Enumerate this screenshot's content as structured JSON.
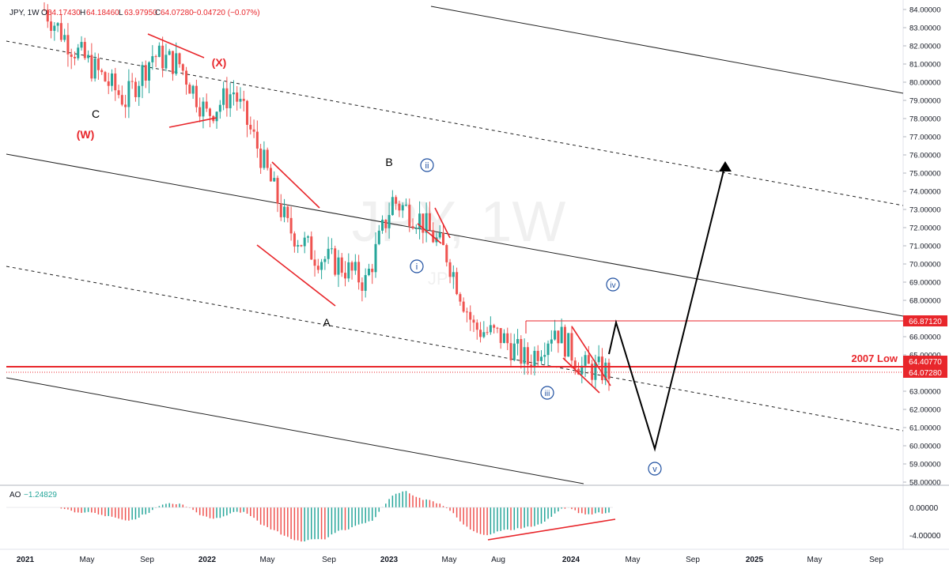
{
  "header": {
    "symbol_tf": "JPY, 1W",
    "o_label": "O",
    "o": "64.17430",
    "h_label": "H",
    "h": "64.18460",
    "l_label": "L",
    "l": "63.97950",
    "c_label": "C",
    "c": "64.07280",
    "change": "−0.04720 (−0.07%)"
  },
  "watermark": {
    "big": "JPY, 1W",
    "small": "JPY"
  },
  "ao_panel": {
    "label": "AO",
    "value": "−1.24829"
  },
  "colors": {
    "up": "#26a69a",
    "down": "#ef5350",
    "annotation_red": "#e8262b",
    "wave_blue": "#1e4fa0"
  },
  "annotations": {
    "C": "C",
    "W": "(W)",
    "X": "(X)",
    "B": "B",
    "A": "A",
    "i": "i",
    "ii": "ii",
    "iii": "iii",
    "iv": "iv",
    "v": "v",
    "low_2007": "2007 Low"
  },
  "chart_data": {
    "type": "candlestick",
    "timeframe": "1W",
    "price_axis": {
      "ticks": [
        "84.00000",
        "83.00000",
        "82.00000",
        "81.00000",
        "80.00000",
        "79.00000",
        "78.00000",
        "77.00000",
        "76.00000",
        "75.00000",
        "74.00000",
        "73.00000",
        "72.00000",
        "71.00000",
        "70.00000",
        "69.00000",
        "68.00000",
        "67.00000",
        "66.00000",
        "65.00000",
        "64.00000",
        "63.00000",
        "62.00000",
        "61.00000",
        "60.00000",
        "59.00000",
        "58.00000"
      ],
      "range": [
        58,
        84
      ]
    },
    "time_axis": {
      "ticks": [
        "2021",
        "May",
        "Sep",
        "2022",
        "May",
        "Sep",
        "2023",
        "May",
        "Aug",
        "2024",
        "May",
        "Sep",
        "2025",
        "May",
        "Sep"
      ]
    },
    "price_labels": [
      {
        "value": "66.87120",
        "style": "red-fill"
      },
      {
        "value": "64.40770",
        "style": "red-fill"
      },
      {
        "value": "64.07280",
        "style": "red-fill"
      }
    ],
    "horizontal_levels": [
      {
        "name": "2007 Low",
        "value": 64.4077
      }
    ],
    "ao_axis": {
      "ticks": [
        "0.00000",
        "-4.00000"
      ]
    },
    "close_series_approx": [
      {
        "t": "2021-01",
        "close": 84.0
      },
      {
        "t": "2021-02",
        "close": 82.0
      },
      {
        "t": "2021-03",
        "close": 80.5
      },
      {
        "t": "2021-05",
        "close": 79.0
      },
      {
        "t": "2021-07",
        "close": 81.5
      },
      {
        "t": "2021-09",
        "close": 81.0
      },
      {
        "t": "2021-11",
        "close": 78.2
      },
      {
        "t": "2022-01",
        "close": 79.5
      },
      {
        "t": "2022-03",
        "close": 76.0
      },
      {
        "t": "2022-05",
        "close": 72.0
      },
      {
        "t": "2022-07",
        "close": 70.5
      },
      {
        "t": "2022-09",
        "close": 70.0
      },
      {
        "t": "2022-11",
        "close": 69.0
      },
      {
        "t": "2023-01",
        "close": 73.5
      },
      {
        "t": "2023-03",
        "close": 72.5
      },
      {
        "t": "2023-05",
        "close": 70.5
      },
      {
        "t": "2023-07",
        "close": 66.5
      },
      {
        "t": "2023-09",
        "close": 66.0
      },
      {
        "t": "2023-11",
        "close": 64.6
      },
      {
        "t": "2023-12",
        "close": 66.5
      },
      {
        "t": "2024-02",
        "close": 64.3
      },
      {
        "t": "2024-03",
        "close": 64.07
      }
    ]
  }
}
